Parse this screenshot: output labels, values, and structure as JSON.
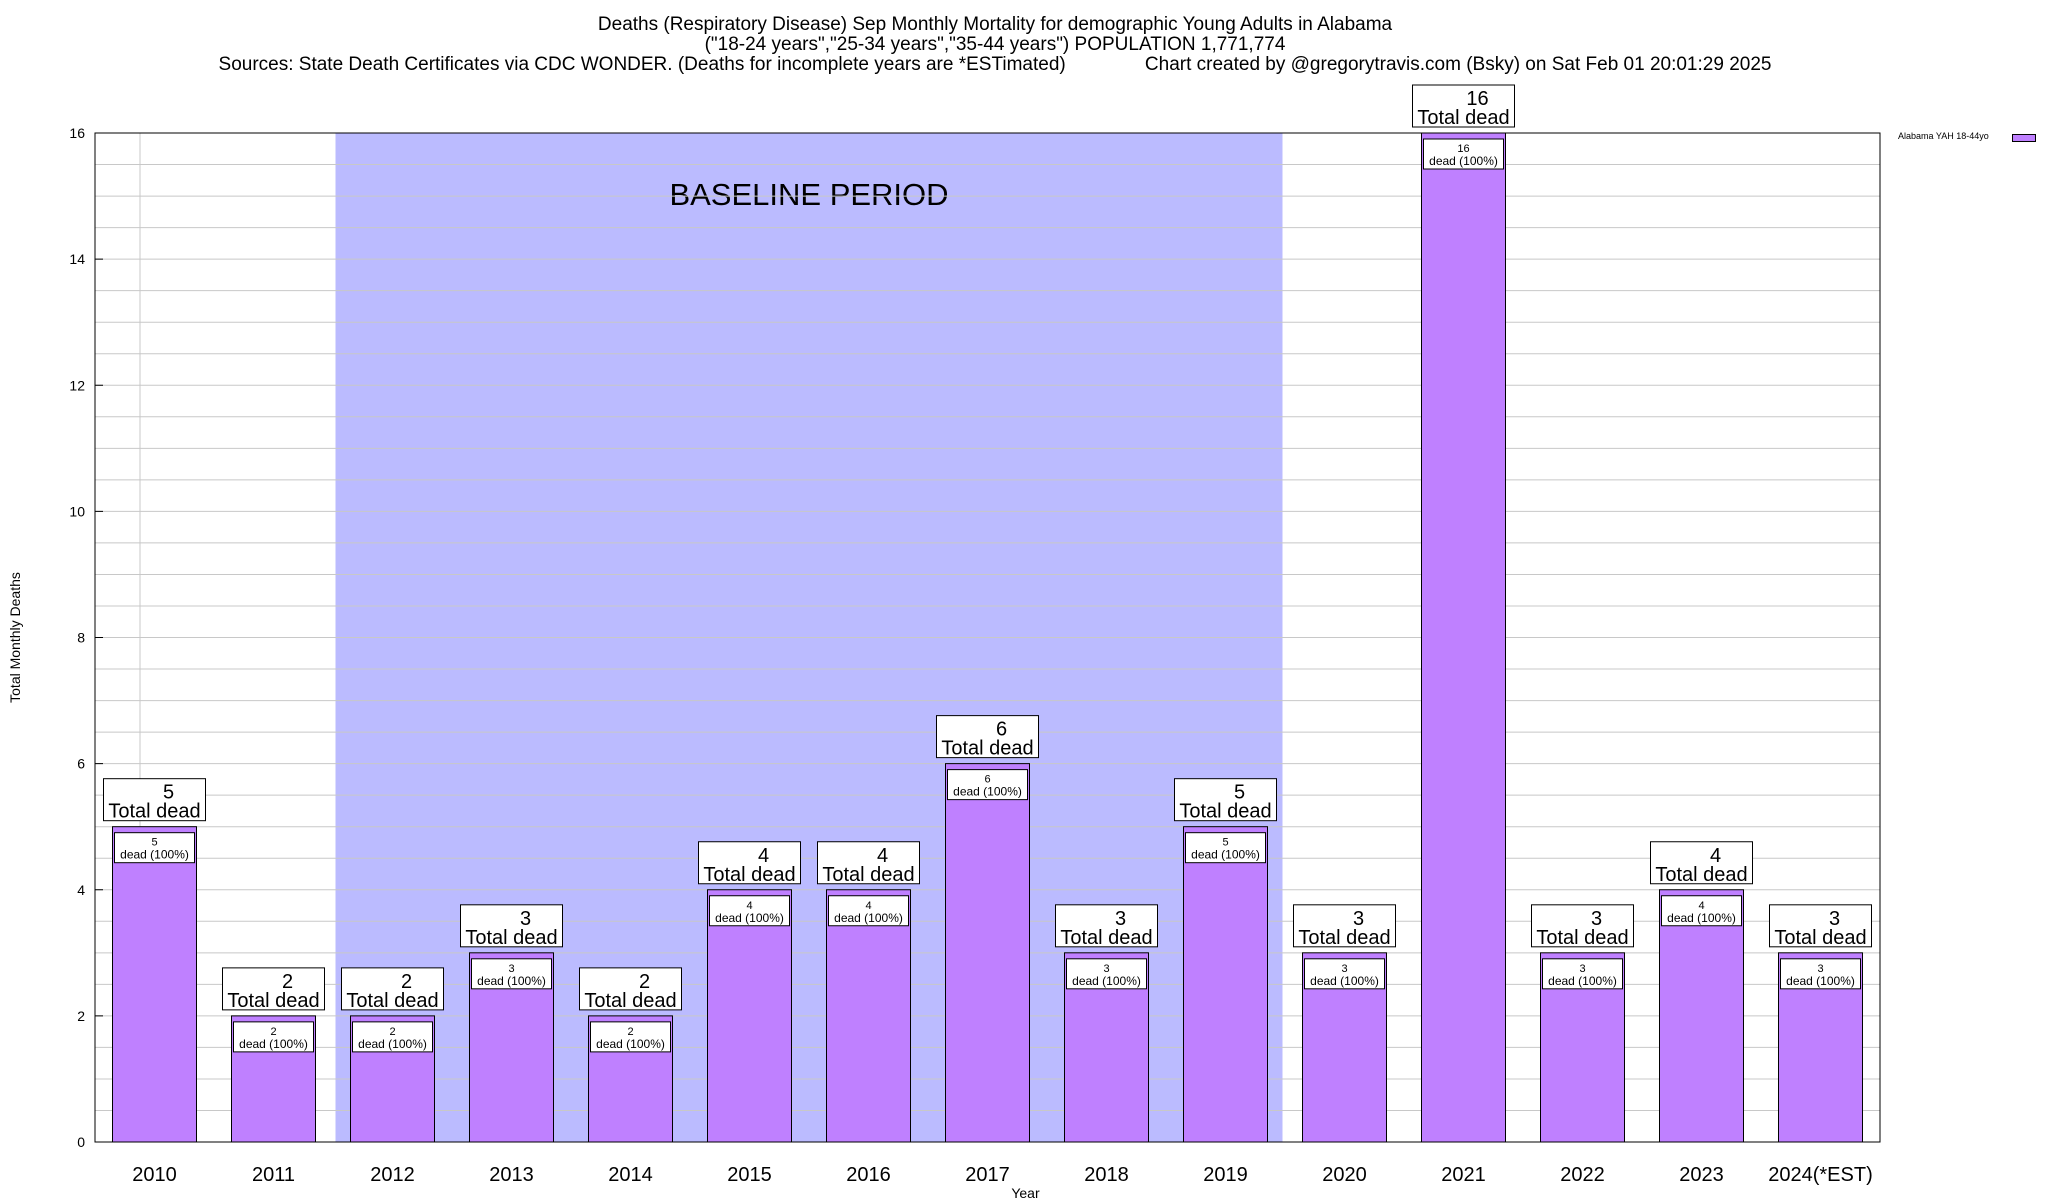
{
  "header": {
    "title_line1": "Deaths (Respiratory Disease) Sep Monthly Mortality for demographic Young Adults in Alabama",
    "title_line2": "(\"18-24 years\",\"25-34 years\",\"35-44 years\") POPULATION 1,771,774",
    "title_line3": "Sources: State Death Certificates via CDC WONDER. (Deaths for incomplete years are *ESTimated)               Chart created by @gregorytravis.com (Bsky) on Sat Feb 01 20:01:29 2025"
  },
  "legend": {
    "label": "Alabama YAH 18-44yo",
    "placement": "top-right"
  },
  "baseline": {
    "label": "BASELINE PERIOD",
    "start": "2012",
    "end": "2019"
  },
  "colors": {
    "bar_fill": "#bf80ff",
    "baseline_fill": "#bbbbff",
    "grid": "#c8c8c8"
  },
  "chart_data": {
    "type": "bar",
    "categories": [
      "2010",
      "2011",
      "2012",
      "2013",
      "2014",
      "2015",
      "2016",
      "2017",
      "2018",
      "2019",
      "2020",
      "2021",
      "2022",
      "2023",
      "2024(*EST)"
    ],
    "series": [
      {
        "name": "Alabama YAH 18-44yo",
        "values": [
          5,
          2,
          2,
          3,
          2,
          4,
          4,
          6,
          3,
          5,
          3,
          16,
          3,
          4,
          3
        ]
      }
    ],
    "xlabel": "Year",
    "ylabel": "Total Monthly Deaths",
    "ylim": [
      0,
      16
    ],
    "yticks": [
      0,
      2,
      4,
      6,
      8,
      10,
      12,
      14,
      16
    ],
    "grid": true,
    "top_label_suffix": "Total dead",
    "inner_label_suffix": "dead (100%)"
  }
}
